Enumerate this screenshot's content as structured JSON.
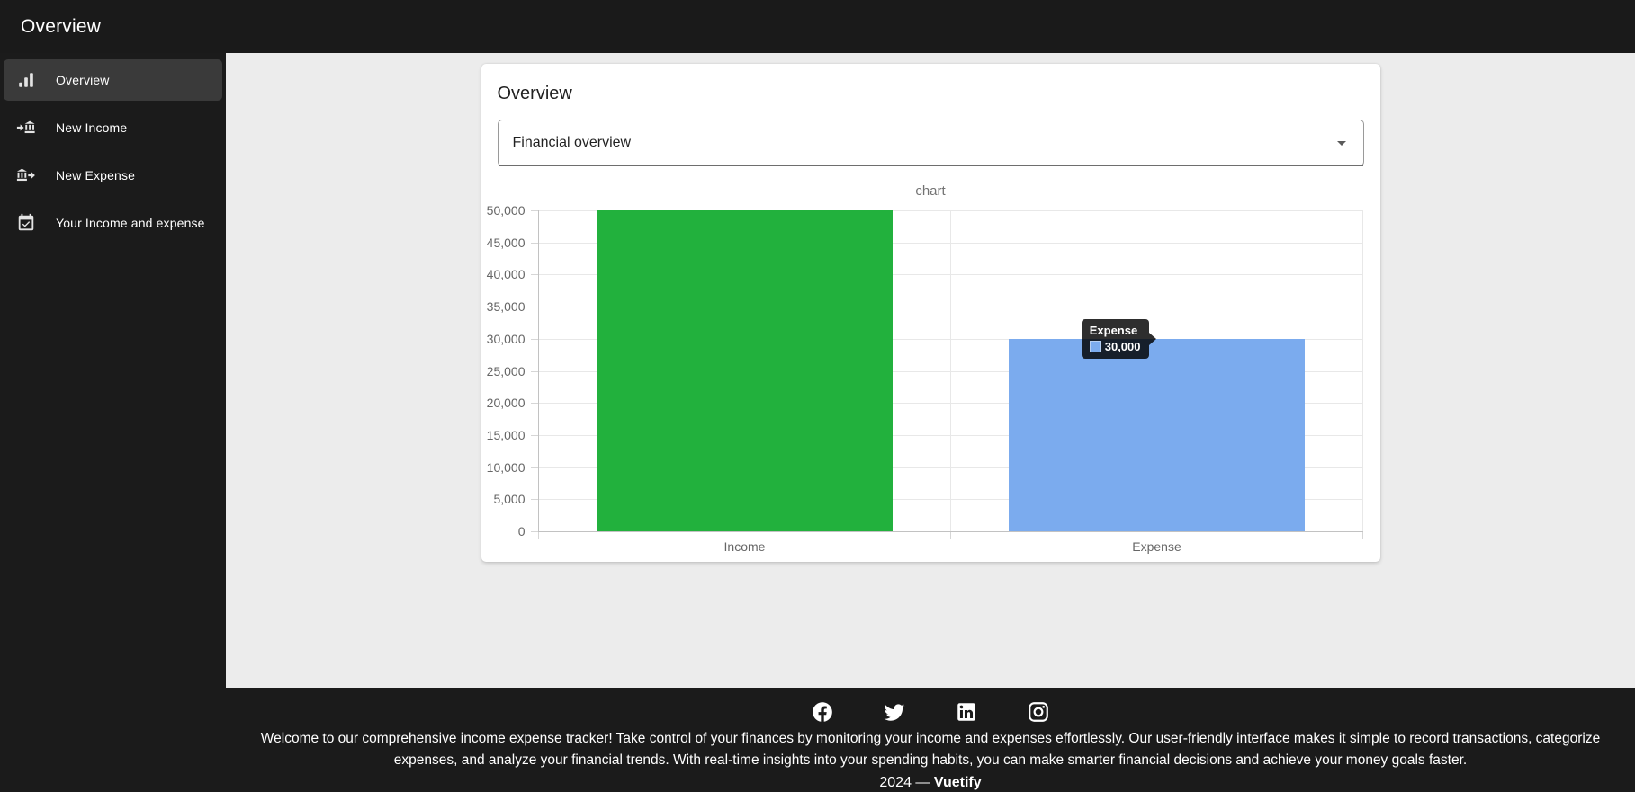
{
  "header": {
    "title": "Overview"
  },
  "sidebar": {
    "items": [
      {
        "label": "Overview",
        "icon": "bar-chart-icon",
        "selected": true
      },
      {
        "label": "New Income",
        "icon": "bank-transfer-in-icon",
        "selected": false
      },
      {
        "label": "New Expense",
        "icon": "bank-transfer-out-icon",
        "selected": false
      },
      {
        "label": "Your Income and expense",
        "icon": "calendar-check-icon",
        "selected": false
      }
    ]
  },
  "card": {
    "title": "Overview",
    "select": {
      "value": "Financial overview"
    }
  },
  "chart_data": {
    "type": "bar",
    "title": "chart",
    "categories": [
      "Income",
      "Expense"
    ],
    "values": [
      50000,
      30000
    ],
    "colors": [
      "#22b13d",
      "#7babee"
    ],
    "ylim": [
      0,
      50000
    ],
    "ytick_step": 5000,
    "grid": true,
    "legend": "none",
    "tooltip": {
      "category": "Expense",
      "value": 30000,
      "index": 1
    }
  },
  "footer": {
    "social": [
      "facebook",
      "twitter",
      "linkedin",
      "instagram"
    ],
    "about": "Welcome to our comprehensive income expense tracker! Take control of your finances by monitoring your income and expenses effortlessly. Our user-friendly interface makes it simple to record transactions, categorize expenses, and analyze your financial trends. With real-time insights into your spending habits, you can make smarter financial decisions and achieve your money goals faster.",
    "year": "2024",
    "separator": "—",
    "brand": "Vuetify"
  },
  "colors": {
    "header_bg": "#1a1a1a",
    "sidebar_bg": "#1b1b1b",
    "sidebar_selected_bg": "#3a3a3a",
    "content_bg": "#ececec",
    "card_bg": "#ffffff",
    "income_bar": "#22b13d",
    "expense_bar": "#7babee",
    "footer_bg": "#1b1b1b"
  }
}
